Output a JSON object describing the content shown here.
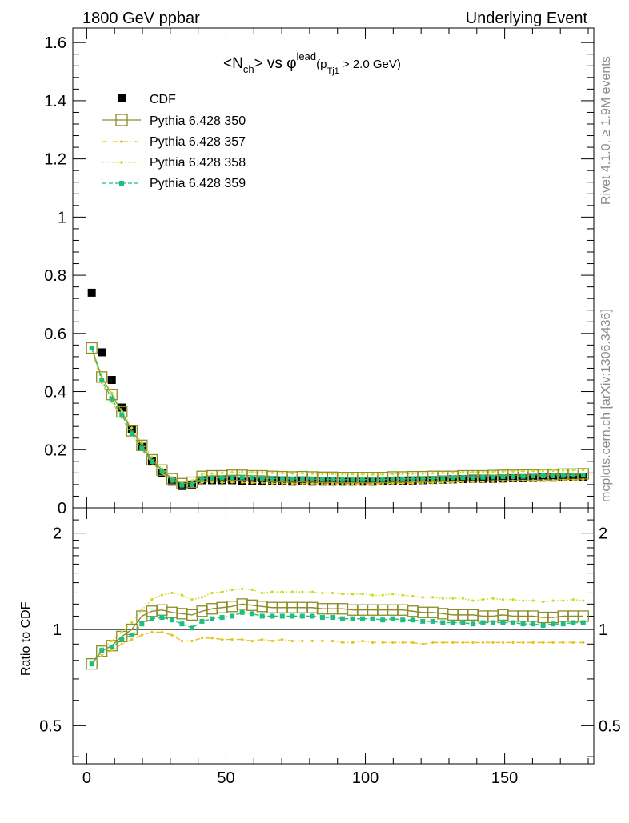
{
  "header": {
    "left": "1800 GeV ppbar",
    "right": "Underlying Event"
  },
  "side_labels": {
    "rivet": "Rivet 4.1.0, ≥ 1.9M events",
    "source": "mcplots.cern.ch [arXiv:1306.3436]"
  },
  "title": {
    "n": "<N",
    "n_sub": "ch",
    "vs": "> vs φ",
    "sup": "lead",
    "paren_open": "(p",
    "paren_sub": "Tj1",
    "paren_close": " > 2.0 GeV)"
  },
  "colors": {
    "cdf": "#000000",
    "p350": "#8c8c2a",
    "p357": "#e6c21a",
    "p358": "#c8dc1e",
    "p359": "#1ebe82"
  },
  "chart_data": [
    {
      "type": "scatter",
      "panel": "main",
      "xlim": [
        -5,
        182
      ],
      "ylim": [
        0,
        1.65
      ],
      "yticks": [
        0,
        0.2,
        0.4,
        0.6,
        0.8,
        1,
        1.2,
        1.4,
        1.6
      ],
      "ytick_labels": [
        "0",
        "0.2",
        "0.4",
        "0.6",
        "0.8",
        "1",
        "1.2",
        "1.4",
        "1.6"
      ],
      "x": [
        1.8,
        5.4,
        9,
        12.6,
        16.2,
        19.8,
        23.4,
        27,
        30.6,
        34.2,
        37.8,
        41.4,
        45,
        48.6,
        52.2,
        55.8,
        59.4,
        63,
        66.6,
        70.2,
        73.8,
        77.4,
        81,
        84.6,
        88.2,
        91.8,
        95.4,
        99,
        102.6,
        106.2,
        109.8,
        113.4,
        117,
        120.6,
        124.2,
        127.8,
        131.4,
        135,
        138.6,
        142.2,
        145.8,
        149.4,
        153,
        156.6,
        160.2,
        163.8,
        167.4,
        171,
        174.6,
        178.2
      ],
      "series": [
        {
          "name": "CDF",
          "values": [
            0.74,
            0.535,
            0.44,
            0.345,
            0.27,
            0.21,
            0.16,
            0.12,
            0.09,
            0.075,
            0.08,
            0.095,
            0.095,
            0.095,
            0.095,
            0.093,
            0.092,
            0.093,
            0.092,
            0.091,
            0.09,
            0.091,
            0.09,
            0.09,
            0.09,
            0.09,
            0.09,
            0.09,
            0.09,
            0.091,
            0.092,
            0.093,
            0.094,
            0.095,
            0.096,
            0.097,
            0.098,
            0.099,
            0.1,
            0.1,
            0.1,
            0.101,
            0.102,
            0.102,
            0.103,
            0.104,
            0.104,
            0.105,
            0.105,
            0.106
          ]
        },
        {
          "name": "Pythia 6.428 350",
          "values": [
            0.55,
            0.45,
            0.39,
            0.33,
            0.265,
            0.215,
            0.165,
            0.13,
            0.1,
            0.083,
            0.088,
            0.108,
            0.11,
            0.11,
            0.112,
            0.112,
            0.11,
            0.11,
            0.108,
            0.107,
            0.106,
            0.107,
            0.106,
            0.105,
            0.105,
            0.104,
            0.104,
            0.104,
            0.104,
            0.104,
            0.106,
            0.106,
            0.107,
            0.107,
            0.108,
            0.108,
            0.108,
            0.11,
            0.11,
            0.11,
            0.111,
            0.112,
            0.112,
            0.113,
            0.113,
            0.114,
            0.114,
            0.116,
            0.116,
            0.117
          ]
        },
        {
          "name": "Pythia 6.428 357",
          "values": [
            0.55,
            0.43,
            0.365,
            0.31,
            0.25,
            0.2,
            0.155,
            0.12,
            0.09,
            0.075,
            0.075,
            0.087,
            0.088,
            0.087,
            0.088,
            0.087,
            0.086,
            0.086,
            0.084,
            0.084,
            0.083,
            0.083,
            0.083,
            0.082,
            0.083,
            0.082,
            0.082,
            0.082,
            0.082,
            0.083,
            0.084,
            0.084,
            0.085,
            0.085,
            0.086,
            0.087,
            0.088,
            0.089,
            0.09,
            0.09,
            0.091,
            0.092,
            0.093,
            0.093,
            0.094,
            0.095,
            0.095,
            0.096,
            0.096,
            0.097
          ]
        },
        {
          "name": "Pythia 6.428 358",
          "values": [
            0.55,
            0.45,
            0.395,
            0.335,
            0.275,
            0.225,
            0.175,
            0.135,
            0.105,
            0.088,
            0.094,
            0.115,
            0.118,
            0.12,
            0.122,
            0.123,
            0.122,
            0.121,
            0.12,
            0.119,
            0.118,
            0.119,
            0.118,
            0.117,
            0.117,
            0.116,
            0.116,
            0.116,
            0.115,
            0.115,
            0.117,
            0.117,
            0.118,
            0.118,
            0.119,
            0.12,
            0.121,
            0.122,
            0.122,
            0.123,
            0.124,
            0.125,
            0.125,
            0.126,
            0.127,
            0.128,
            0.128,
            0.129,
            0.13,
            0.13
          ]
        },
        {
          "name": "Pythia 6.428 359",
          "values": [
            0.55,
            0.44,
            0.375,
            0.32,
            0.255,
            0.205,
            0.16,
            0.125,
            0.095,
            0.078,
            0.08,
            0.1,
            0.102,
            0.103,
            0.104,
            0.105,
            0.103,
            0.102,
            0.101,
            0.1,
            0.099,
            0.1,
            0.099,
            0.098,
            0.098,
            0.097,
            0.097,
            0.097,
            0.097,
            0.097,
            0.099,
            0.099,
            0.1,
            0.1,
            0.101,
            0.102,
            0.103,
            0.104,
            0.104,
            0.105,
            0.106,
            0.107,
            0.107,
            0.108,
            0.109,
            0.11,
            0.11,
            0.111,
            0.112,
            0.112
          ]
        }
      ],
      "legend": [
        "CDF",
        "Pythia 6.428 350",
        "Pythia 6.428 357",
        "Pythia 6.428 358",
        "Pythia 6.428 359"
      ]
    },
    {
      "type": "line",
      "panel": "ratio",
      "ylabel": "Ratio to CDF",
      "xlim": [
        -5,
        182
      ],
      "ylim": [
        0.38,
        2.4
      ],
      "scale": "log",
      "yticks": [
        0.5,
        1,
        2
      ],
      "ytick_labels": [
        "0.5",
        "1",
        "2"
      ],
      "xticks": [
        0,
        50,
        100,
        150
      ],
      "xtick_labels": [
        "0",
        "50",
        "100",
        "150"
      ],
      "x": [
        1.8,
        5.4,
        9,
        12.6,
        16.2,
        19.8,
        23.4,
        27,
        30.6,
        34.2,
        37.8,
        41.4,
        45,
        48.6,
        52.2,
        55.8,
        59.4,
        63,
        66.6,
        70.2,
        73.8,
        77.4,
        81,
        84.6,
        88.2,
        91.8,
        95.4,
        99,
        102.6,
        106.2,
        109.8,
        113.4,
        117,
        120.6,
        124.2,
        127.8,
        131.4,
        135,
        138.6,
        142.2,
        145.8,
        149.4,
        153,
        156.6,
        160.2,
        163.8,
        167.4,
        171,
        174.6,
        178.2
      ],
      "series": [
        {
          "name": "Pythia 6.428 350",
          "values": [
            0.78,
            0.855,
            0.89,
            0.95,
            1.0,
            1.1,
            1.14,
            1.15,
            1.13,
            1.12,
            1.11,
            1.14,
            1.16,
            1.17,
            1.18,
            1.2,
            1.19,
            1.18,
            1.17,
            1.17,
            1.17,
            1.17,
            1.17,
            1.16,
            1.16,
            1.16,
            1.15,
            1.15,
            1.15,
            1.15,
            1.15,
            1.15,
            1.14,
            1.13,
            1.13,
            1.12,
            1.11,
            1.11,
            1.11,
            1.1,
            1.1,
            1.11,
            1.1,
            1.1,
            1.1,
            1.09,
            1.09,
            1.1,
            1.1,
            1.1
          ]
        },
        {
          "name": "Pythia 6.428 357",
          "values": [
            0.78,
            0.83,
            0.86,
            0.9,
            0.93,
            0.96,
            0.98,
            0.98,
            0.96,
            0.92,
            0.92,
            0.94,
            0.94,
            0.93,
            0.93,
            0.93,
            0.92,
            0.93,
            0.92,
            0.93,
            0.92,
            0.92,
            0.92,
            0.92,
            0.92,
            0.91,
            0.91,
            0.92,
            0.91,
            0.91,
            0.91,
            0.91,
            0.91,
            0.9,
            0.91,
            0.91,
            0.91,
            0.91,
            0.91,
            0.91,
            0.91,
            0.91,
            0.91,
            0.91,
            0.91,
            0.91,
            0.91,
            0.91,
            0.91,
            0.91
          ]
        },
        {
          "name": "Pythia 6.428 358",
          "values": [
            0.78,
            0.87,
            0.92,
            0.98,
            1.05,
            1.15,
            1.24,
            1.28,
            1.3,
            1.28,
            1.24,
            1.26,
            1.3,
            1.31,
            1.33,
            1.34,
            1.33,
            1.3,
            1.31,
            1.31,
            1.31,
            1.31,
            1.31,
            1.3,
            1.3,
            1.29,
            1.29,
            1.29,
            1.28,
            1.28,
            1.29,
            1.28,
            1.27,
            1.26,
            1.26,
            1.25,
            1.25,
            1.25,
            1.23,
            1.24,
            1.25,
            1.24,
            1.24,
            1.23,
            1.23,
            1.22,
            1.23,
            1.23,
            1.24,
            1.23
          ]
        },
        {
          "name": "Pythia 6.428 359",
          "values": [
            0.78,
            0.86,
            0.88,
            0.93,
            0.96,
            1.04,
            1.08,
            1.09,
            1.07,
            1.04,
            1.01,
            1.06,
            1.08,
            1.09,
            1.1,
            1.13,
            1.12,
            1.1,
            1.1,
            1.1,
            1.1,
            1.1,
            1.1,
            1.09,
            1.09,
            1.08,
            1.08,
            1.08,
            1.08,
            1.07,
            1.08,
            1.07,
            1.07,
            1.06,
            1.06,
            1.05,
            1.05,
            1.05,
            1.04,
            1.05,
            1.05,
            1.05,
            1.05,
            1.04,
            1.04,
            1.03,
            1.04,
            1.04,
            1.05,
            1.05
          ]
        }
      ]
    }
  ]
}
